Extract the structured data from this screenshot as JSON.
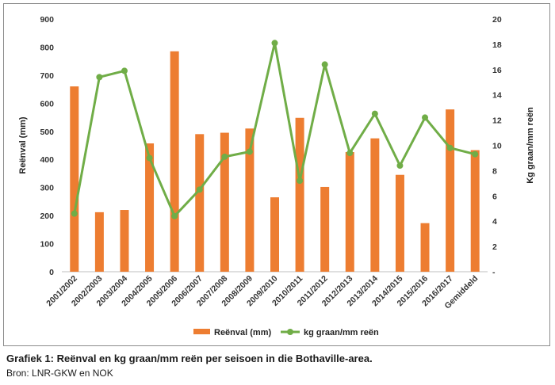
{
  "chart_data": {
    "type": "bar",
    "categories": [
      "2001/2002",
      "2002/2003",
      "2003/2004",
      "2004/2005",
      "2005/2006",
      "2006/2007",
      "2007/2008",
      "2008/2009",
      "2009/2010",
      "2010/2011",
      "2011/2012",
      "2012/2013",
      "2013/2014",
      "2014/2015",
      "2015/2016",
      "2016/2017",
      "Gemiddeld"
    ],
    "series": [
      {
        "name": "Reënval (mm)",
        "type": "bar",
        "axis": "left",
        "color": "#ed7d31",
        "values": [
          660,
          212,
          220,
          457,
          785,
          490,
          495,
          510,
          265,
          548,
          302,
          426,
          475,
          345,
          173,
          578,
          433
        ]
      },
      {
        "name": "kg graan/mm reën",
        "type": "line",
        "axis": "right",
        "color": "#70ad47",
        "values": [
          4.6,
          15.4,
          15.9,
          9.0,
          4.4,
          6.5,
          9.1,
          9.5,
          18.1,
          7.2,
          16.4,
          9.4,
          12.5,
          8.4,
          12.2,
          9.8,
          9.3
        ]
      }
    ],
    "ylabel": "Reënval (mm)",
    "y2label": "Kg graan/mm reën",
    "ylim": [
      0,
      900
    ],
    "y2lim": [
      0,
      20
    ],
    "yticks": [
      "0",
      "100",
      "200",
      "300",
      "400",
      "500",
      "600",
      "700",
      "800",
      "900"
    ],
    "y2ticks": [
      "-",
      "2",
      "4",
      "6",
      "8",
      "10",
      "12",
      "14",
      "16",
      "18",
      "20"
    ],
    "grid": false,
    "legend": "bottom"
  },
  "caption": "Grafiek 1: Reënval en kg graan/mm reën per seisoen in die Bothaville-area.",
  "source": "Bron: LNR-GKW en NOK"
}
